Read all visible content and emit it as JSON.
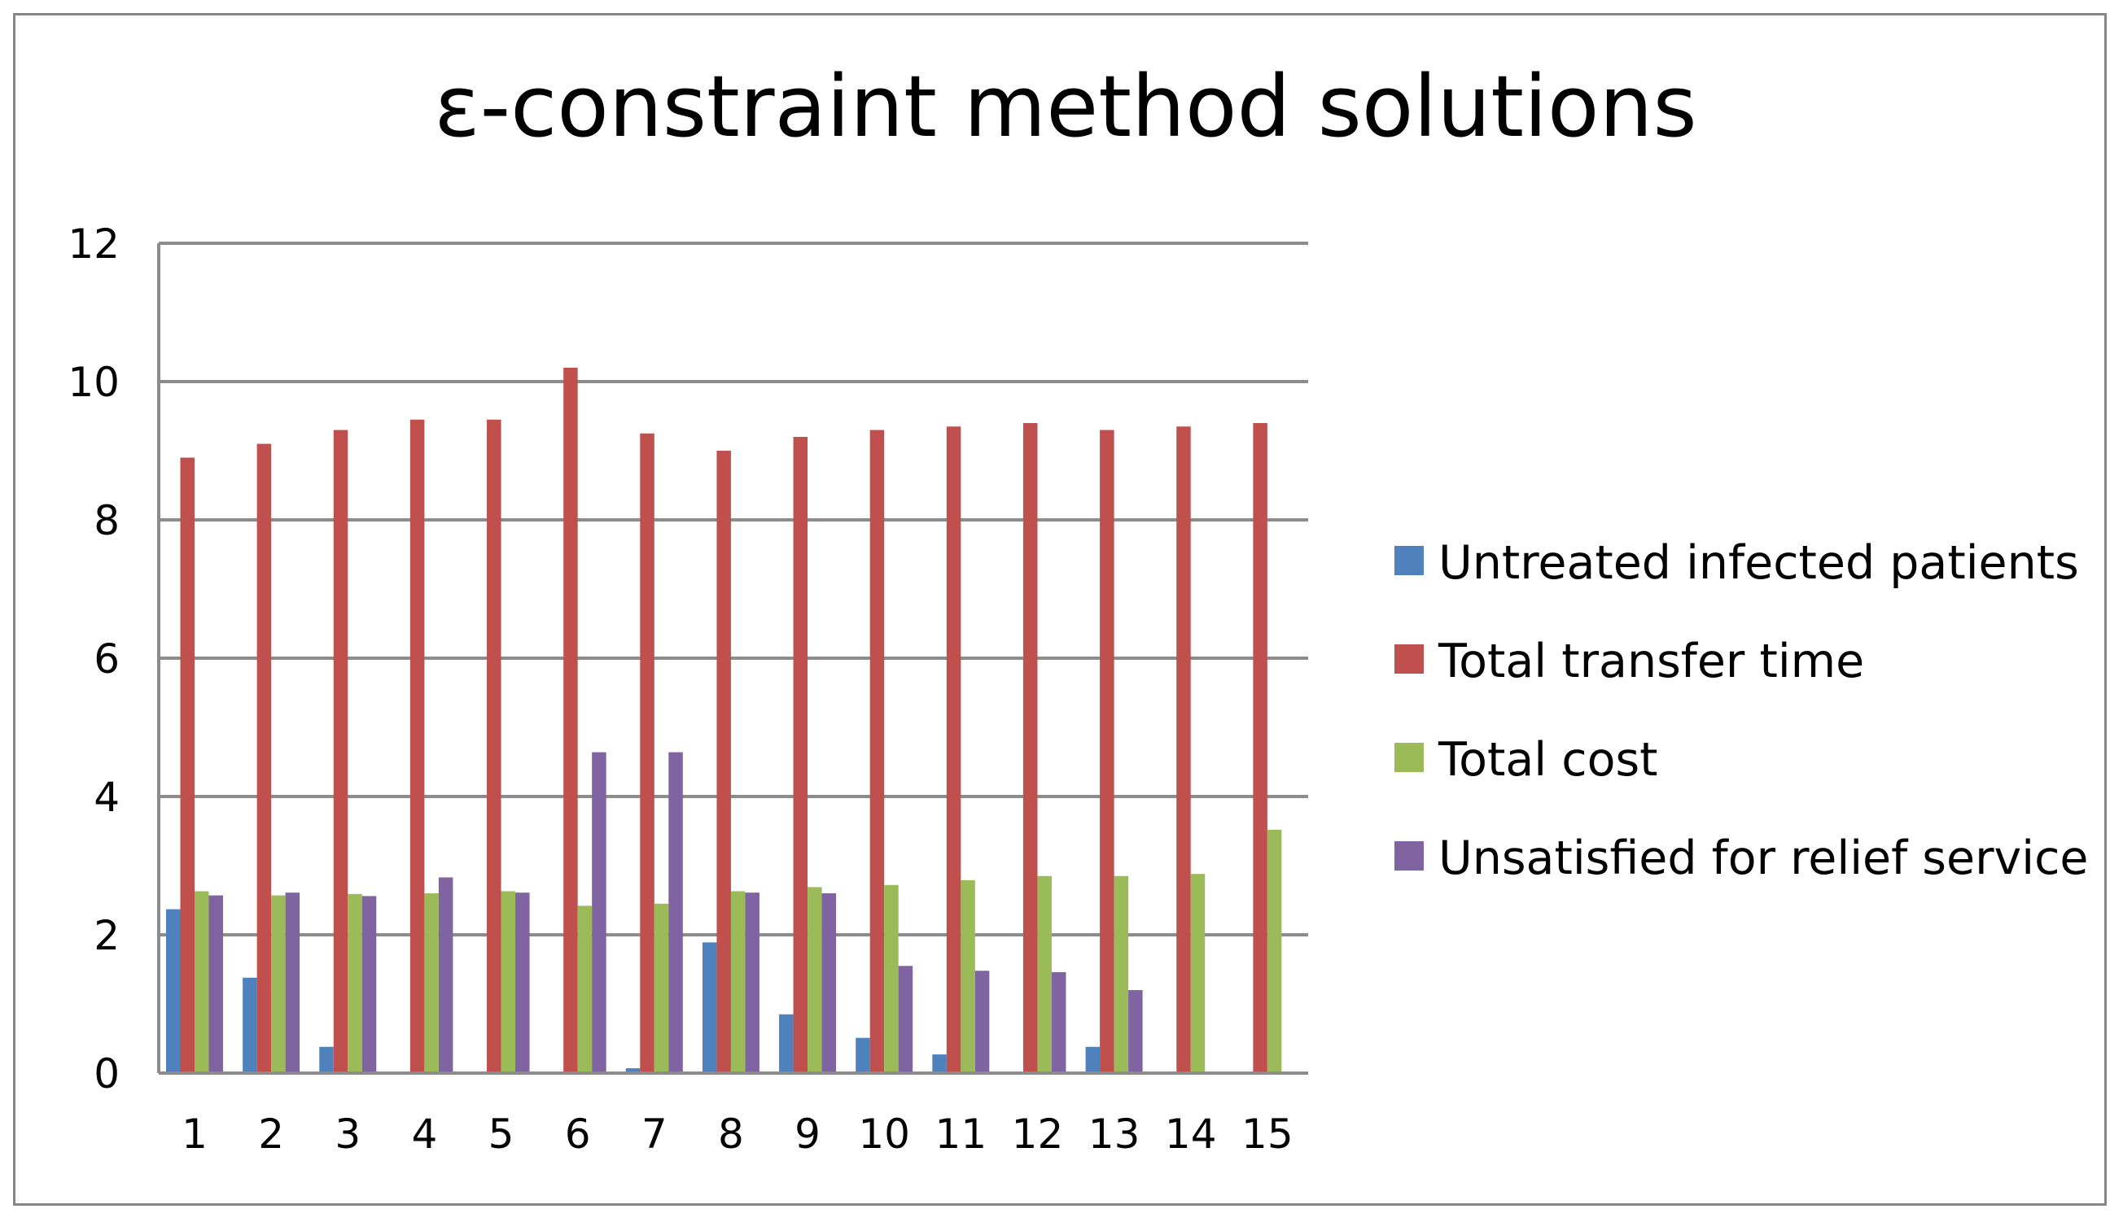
{
  "chart_data": {
    "type": "bar",
    "title": "ε-constraint method solutions",
    "xlabel": "",
    "ylabel": "",
    "categories": [
      "1",
      "2",
      "3",
      "4",
      "5",
      "6",
      "7",
      "8",
      "9",
      "10",
      "11",
      "12",
      "13",
      "14",
      "15"
    ],
    "ylim": [
      0,
      12
    ],
    "yticks": [
      0,
      2,
      4,
      6,
      8,
      10,
      12
    ],
    "grid": true,
    "legend_position": "right",
    "series": [
      {
        "name": "Untreated infected patients",
        "color": "#4F81BD",
        "values": [
          2.37,
          1.38,
          0.38,
          0,
          0,
          0,
          0.07,
          1.89,
          0.85,
          0.51,
          0.27,
          0,
          0.38,
          0,
          0
        ]
      },
      {
        "name": "Total transfer time",
        "color": "#C0504D",
        "values": [
          8.9,
          9.1,
          9.3,
          9.45,
          9.45,
          10.2,
          9.25,
          9.0,
          9.2,
          9.3,
          9.35,
          9.4,
          9.3,
          9.35,
          9.4
        ]
      },
      {
        "name": " Total cost",
        "color": "#9BBB59",
        "values": [
          2.63,
          2.57,
          2.59,
          2.6,
          2.63,
          2.42,
          2.45,
          2.63,
          2.69,
          2.72,
          2.79,
          2.85,
          2.85,
          2.88,
          3.52
        ]
      },
      {
        "name": "Unsatisfied for relief service",
        "color": "#8064A2",
        "values": [
          2.57,
          2.61,
          2.56,
          2.83,
          2.61,
          4.64,
          4.64,
          2.61,
          2.6,
          1.55,
          1.48,
          1.46,
          1.2,
          0,
          0
        ]
      }
    ]
  }
}
